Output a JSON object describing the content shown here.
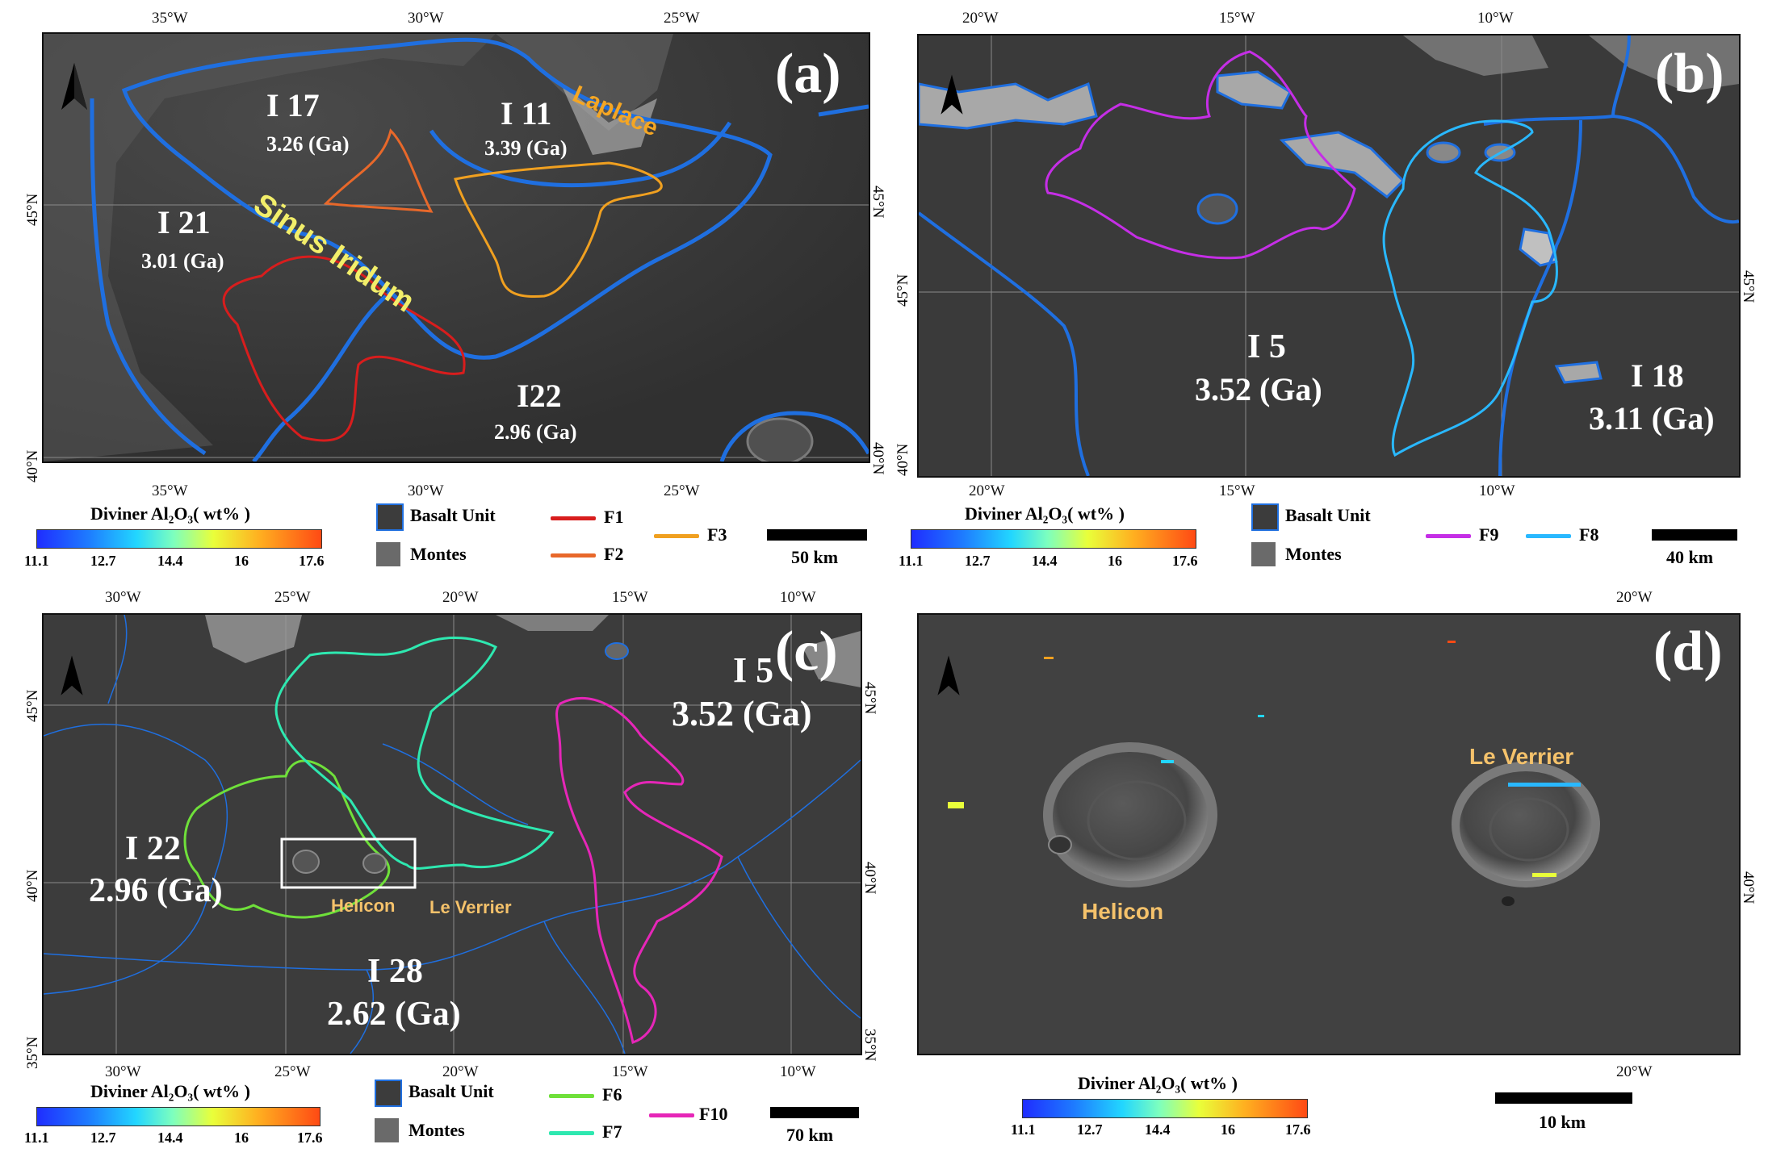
{
  "colors": {
    "basalt_unit_outline": "#1f6fe0",
    "f1": "#d81d1d",
    "f2": "#e8682a",
    "f3": "#f0a020",
    "f6": "#6fe03a",
    "f7": "#2ee8b0",
    "f8": "#29b8ff",
    "f9": "#c52ee6",
    "f10": "#e626b8",
    "laplace_label": "#f5a623",
    "sinus_iridum_label": "#f2ee6a",
    "crater_label": "#f5c26b"
  },
  "colorbar": {
    "title": "Diviner Al₂O₃( wt% )",
    "ticks": [
      "11.1",
      "12.7",
      "14.4",
      "16",
      "17.6"
    ]
  },
  "legend": {
    "basalt_unit": "Basalt Unit",
    "montes": "Montes"
  },
  "panels": {
    "a": {
      "label": "(a)",
      "top_ticks": [
        "35°W",
        "30°W",
        "25°W"
      ],
      "bottom_ticks": [
        "35°W",
        "30°W",
        "25°W"
      ],
      "left_ticks": [
        "45°N",
        "40°N"
      ],
      "right_ticks": [
        "45°N",
        "40°N"
      ],
      "units": [
        {
          "name": "I 17",
          "age": "3.26 (Ga)"
        },
        {
          "name": "I 11",
          "age": "3.39 (Ga)"
        },
        {
          "name": "I 21",
          "age": "3.01 (Ga)"
        },
        {
          "name": "I22",
          "age": "2.96 (Ga)"
        }
      ],
      "places": {
        "laplace": "Laplace",
        "sinus_iridum": "Sinus Iridum"
      },
      "flows": [
        "F1",
        "F2",
        "F3"
      ],
      "scale": "50 km"
    },
    "b": {
      "label": "(b)",
      "top_ticks": [
        "20°W",
        "15°W",
        "10°W"
      ],
      "bottom_ticks": [
        "20°W",
        "15°W",
        "10°W"
      ],
      "left_ticks": [
        "45°N",
        "40°N"
      ],
      "right_ticks": [
        "45°N"
      ],
      "units": [
        {
          "name": "I 5",
          "age": "3.52 (Ga)"
        },
        {
          "name": "I 18",
          "age": "3.11 (Ga)"
        }
      ],
      "flows": [
        "F9",
        "F8"
      ],
      "scale": "40 km"
    },
    "c": {
      "label": "(c)",
      "top_ticks": [
        "30°W",
        "25°W",
        "20°W",
        "15°W",
        "10°W"
      ],
      "bottom_ticks": [
        "30°W",
        "25°W",
        "20°W",
        "15°W",
        "10°W"
      ],
      "left_ticks": [
        "45°N",
        "40°N",
        "35°N"
      ],
      "right_ticks": [
        "45°N",
        "40°N",
        "35°N"
      ],
      "units": [
        {
          "name": "I 5",
          "age": "3.52 (Ga)"
        },
        {
          "name": "I 22",
          "age": "2.96 (Ga)"
        },
        {
          "name": "I 28",
          "age": "2.62 (Ga)"
        }
      ],
      "places": {
        "helicon": "Helicon",
        "le_verrier": "Le Verrier"
      },
      "flows": [
        "F6",
        "F7",
        "F10"
      ],
      "scale": "70 km"
    },
    "d": {
      "label": "(d)",
      "top_ticks": [
        "20°W"
      ],
      "bottom_ticks": [
        "20°W"
      ],
      "right_ticks": [
        "40°N"
      ],
      "places": {
        "helicon": "Helicon",
        "le_verrier": "Le Verrier"
      },
      "scale": "10 km"
    }
  }
}
